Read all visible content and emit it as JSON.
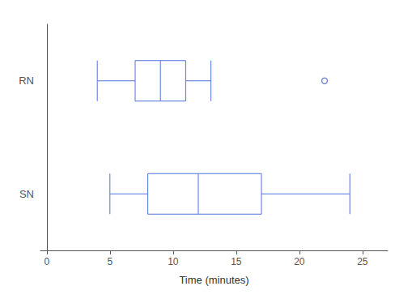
{
  "chart_data": {
    "type": "boxplot",
    "orientation": "horizontal",
    "categories": [
      "SN",
      "RN"
    ],
    "boxes": [
      {
        "whislo": 5,
        "q1": 8,
        "med": 12,
        "q3": 17,
        "whishi": 24,
        "fliers": []
      },
      {
        "whislo": 4,
        "q1": 7,
        "med": 9,
        "q3": 11,
        "whishi": 13,
        "fliers": [
          22
        ]
      }
    ],
    "xlabel": "Time (minutes)",
    "xlim": [
      -0.5,
      27
    ],
    "xticks": [
      0,
      5,
      10,
      15,
      20,
      25
    ],
    "grid": false
  }
}
